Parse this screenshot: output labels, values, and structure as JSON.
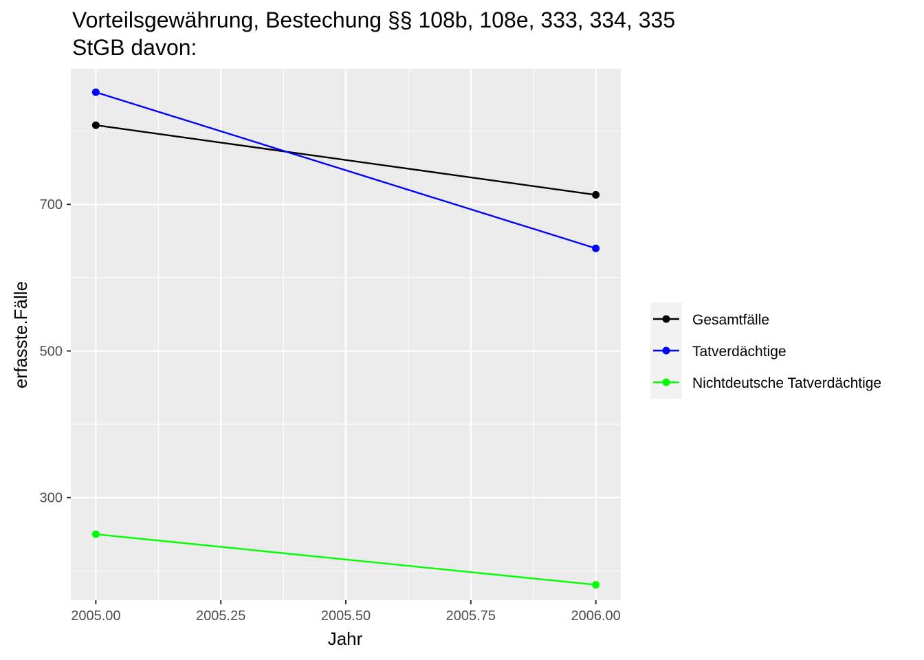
{
  "chart_data": {
    "type": "line",
    "title_lines": [
      "Vorteilsgewährung, Bestechung §§ 108b, 108e, 333, 334, 335",
      "StGB davon:"
    ],
    "xlabel": "Jahr",
    "ylabel": "erfasste.Fälle",
    "xlim": [
      2004.95,
      2006.05
    ],
    "ylim": [
      160,
      885
    ],
    "x_ticks": [
      2005.0,
      2005.25,
      2005.5,
      2005.75,
      2006.0
    ],
    "x_tick_labels": [
      "2005.00",
      "2005.25",
      "2005.50",
      "2005.75",
      "2006.00"
    ],
    "y_ticks": [
      300,
      500,
      700
    ],
    "y_tick_labels": [
      "300",
      "500",
      "700"
    ],
    "grid": true,
    "legend_position": "right",
    "x": [
      2005,
      2006
    ],
    "series": [
      {
        "name": "Gesamtfälle",
        "color": "#000000",
        "values": [
          808,
          713
        ]
      },
      {
        "name": "Tatverdächtige",
        "color": "#0000ff",
        "values": [
          853,
          640
        ]
      },
      {
        "name": "Nichtdeutsche Tatverdächtige",
        "color": "#00ff00",
        "values": [
          250,
          181
        ]
      }
    ],
    "panel_background": "#ebebeb",
    "grid_color": "#ffffff"
  }
}
